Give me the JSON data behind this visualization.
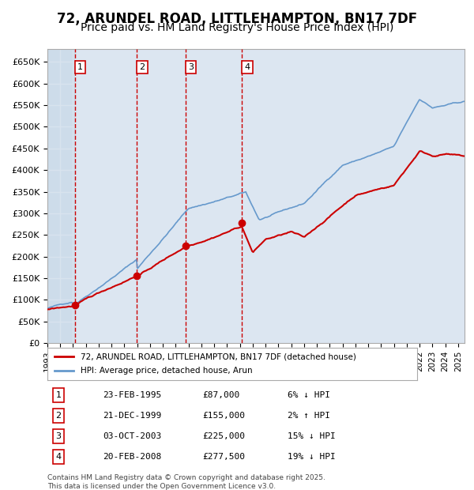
{
  "title": "72, ARUNDEL ROAD, LITTLEHAMPTON, BN17 7DF",
  "subtitle": "Price paid vs. HM Land Registry's House Price Index (HPI)",
  "title_fontsize": 12,
  "subtitle_fontsize": 10,
  "background_color": "#ffffff",
  "plot_bg_color": "#dce6f1",
  "grid_color": "#ffffff",
  "ylabel_color": "#000000",
  "sale_line_color": "#cc0000",
  "hpi_line_color": "#6699cc",
  "sale_marker_color": "#cc0000",
  "vline_color": "#cc0000",
  "shade_color": "#dce6f1",
  "ylim": [
    0,
    680000
  ],
  "yticks": [
    0,
    50000,
    100000,
    150000,
    200000,
    250000,
    300000,
    350000,
    400000,
    450000,
    500000,
    550000,
    600000,
    650000
  ],
  "ytick_labels": [
    "£0",
    "£50K",
    "£100K",
    "£150K",
    "£200K",
    "£250K",
    "£300K",
    "£350K",
    "£400K",
    "£450K",
    "£500K",
    "£550K",
    "£600K",
    "£650K"
  ],
  "sales": [
    {
      "date": "1995-02-23",
      "year": 1995.14,
      "price": 87000,
      "label": "1"
    },
    {
      "date": "1999-12-21",
      "year": 1999.97,
      "price": 155000,
      "label": "2"
    },
    {
      "date": "2003-10-03",
      "year": 2003.75,
      "price": 225000,
      "label": "3"
    },
    {
      "date": "2008-02-20",
      "year": 2008.14,
      "price": 277500,
      "label": "4"
    }
  ],
  "legend_entries": [
    {
      "label": "72, ARUNDEL ROAD, LITTLEHAMPTON, BN17 7DF (detached house)",
      "color": "#cc0000"
    },
    {
      "label": "HPI: Average price, detached house, Arun",
      "color": "#6699cc"
    }
  ],
  "table_rows": [
    {
      "num": "1",
      "date": "23-FEB-1995",
      "price": "£87,000",
      "hpi": "6% ↓ HPI"
    },
    {
      "num": "2",
      "date": "21-DEC-1999",
      "price": "£155,000",
      "hpi": "2% ↑ HPI"
    },
    {
      "num": "3",
      "date": "03-OCT-2003",
      "price": "£225,000",
      "hpi": "15% ↓ HPI"
    },
    {
      "num": "4",
      "date": "20-FEB-2008",
      "price": "£277,500",
      "hpi": "19% ↓ HPI"
    }
  ],
  "footer": "Contains HM Land Registry data © Crown copyright and database right 2025.\nThis data is licensed under the Open Government Licence v3.0.",
  "xmin": 1993.0,
  "xmax": 2025.5
}
